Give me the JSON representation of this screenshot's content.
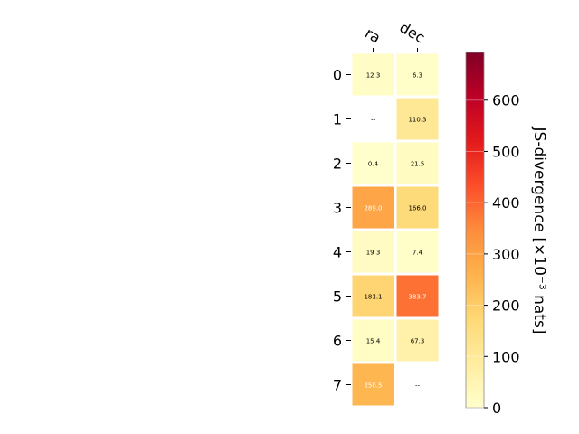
{
  "chart_data": {
    "type": "heatmap",
    "columns": [
      "ra",
      "dec"
    ],
    "rows": [
      "0",
      "1",
      "2",
      "3",
      "4",
      "5",
      "6",
      "7"
    ],
    "values": [
      [
        12.3,
        6.3
      ],
      [
        null,
        110.3
      ],
      [
        0.4,
        21.5
      ],
      [
        289.0,
        166.0
      ],
      [
        19.3,
        7.4
      ],
      [
        181.1,
        383.7
      ],
      [
        15.4,
        67.3
      ],
      [
        250.5,
        null
      ]
    ],
    "cell_labels": [
      [
        "12.3",
        "6.3"
      ],
      [
        "--",
        "110.3"
      ],
      [
        "0.4",
        "21.5"
      ],
      [
        "289.0",
        "166.0"
      ],
      [
        "19.3",
        "7.4"
      ],
      [
        "181.1",
        "383.7"
      ],
      [
        "15.4",
        "67.3"
      ],
      [
        "250.5",
        "--"
      ]
    ],
    "colorbar": {
      "label": "JS-divergence [×10⁻³ nats]",
      "range": [
        0,
        693
      ],
      "ticks": [
        0,
        100,
        200,
        300,
        400,
        500,
        600
      ],
      "colormap": "YlOrRd"
    },
    "colors": {
      "grid_line": "#ffffff",
      "text_dark": "#000000",
      "text_light": "#ffffff"
    }
  }
}
